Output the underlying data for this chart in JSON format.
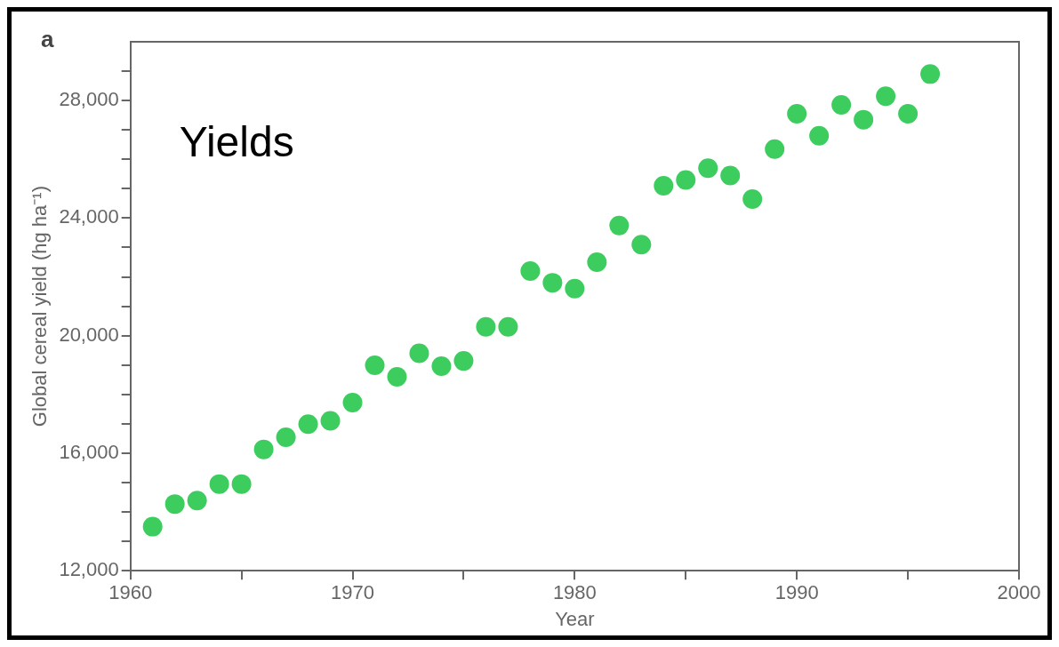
{
  "chart_data": {
    "type": "scatter",
    "xlabel": "Year",
    "ylabel": "Global cereal yield (hg ha⁻¹)",
    "annotations": [
      "a",
      "Yields"
    ],
    "x": [
      1961,
      1962,
      1963,
      1964,
      1965,
      1966,
      1967,
      1968,
      1969,
      1970,
      1971,
      1972,
      1973,
      1974,
      1975,
      1976,
      1977,
      1978,
      1979,
      1980,
      1981,
      1982,
      1983,
      1984,
      1985,
      1986,
      1987,
      1988,
      1989,
      1990,
      1991,
      1992,
      1993,
      1994,
      1995,
      1996
    ],
    "series": [
      {
        "color": "#3dcc5e",
        "values": [
          13500,
          14270,
          14390,
          14950,
          14950,
          16130,
          16540,
          16990,
          17100,
          17720,
          18990,
          18600,
          19400,
          18960,
          19140,
          20300,
          20300,
          22200,
          21800,
          21600,
          22500,
          23750,
          23100,
          25100,
          25300,
          25700,
          25450,
          24650,
          26350,
          27550,
          26800,
          27850,
          27350,
          28150,
          27550,
          28900
        ]
      }
    ],
    "marker": "circle",
    "grid": false,
    "legend": false,
    "xlim": [
      1960,
      2000
    ],
    "xticks": [
      1960,
      {
        "value": 1965,
        "label": null
      },
      1970,
      {
        "value": 1975,
        "label": null
      },
      1980,
      {
        "value": 1985,
        "label": null
      },
      1990,
      {
        "value": 1995,
        "label": null
      },
      2000
    ],
    "ylim": [
      12000,
      30000
    ],
    "yticks": [
      {
        "value": 12000,
        "label": "12,000"
      },
      {
        "value": 13000,
        "label": null
      },
      {
        "value": 14000,
        "label": null
      },
      {
        "value": 15000,
        "label": null
      },
      {
        "value": 16000,
        "label": "16,000"
      },
      {
        "value": 17000,
        "label": null
      },
      {
        "value": 18000,
        "label": null
      },
      {
        "value": 19000,
        "label": null
      },
      {
        "value": 20000,
        "label": "20,000"
      },
      {
        "value": 21000,
        "label": null
      },
      {
        "value": 22000,
        "label": null
      },
      {
        "value": 23000,
        "label": null
      },
      {
        "value": 24000,
        "label": "24,000"
      },
      {
        "value": 25000,
        "label": null
      },
      {
        "value": 26000,
        "label": null
      },
      {
        "value": 27000,
        "label": null
      },
      {
        "value": 28000,
        "label": "28,000"
      },
      {
        "value": 29000,
        "label": null
      }
    ]
  }
}
